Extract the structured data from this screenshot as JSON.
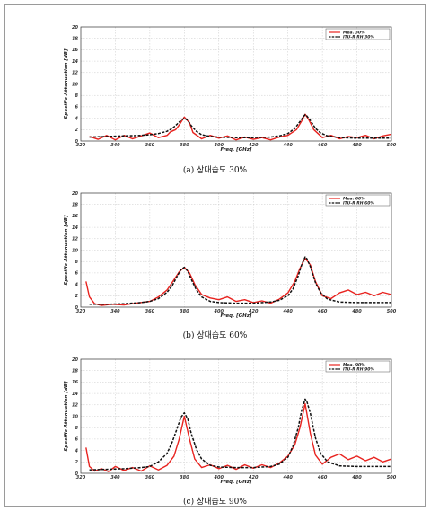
{
  "chart_data": [
    {
      "type": "line",
      "caption": "(a) 상대습도 30%",
      "xlabel": "Freq. [GHz]",
      "ylabel": "Specific Attenuation [dB]",
      "xlim": [
        320,
        500
      ],
      "ylim": [
        0,
        20
      ],
      "xticks": [
        320,
        340,
        360,
        380,
        400,
        420,
        440,
        460,
        480,
        500
      ],
      "yticks": [
        0,
        2,
        4,
        6,
        8,
        10,
        12,
        14,
        16,
        18,
        20
      ],
      "grid": true,
      "legend_position": "top-right",
      "series": [
        {
          "name": "Mea. 30%",
          "color": "#e8231f",
          "dash": "solid",
          "x": [
            325,
            330,
            335,
            340,
            345,
            350,
            355,
            360,
            365,
            370,
            372,
            375,
            377,
            380,
            383,
            385,
            390,
            395,
            400,
            405,
            410,
            415,
            420,
            425,
            430,
            435,
            440,
            445,
            448,
            450,
            452,
            455,
            460,
            465,
            470,
            475,
            480,
            485,
            490,
            495,
            500
          ],
          "y": [
            0.8,
            0.3,
            1.0,
            0.2,
            1.0,
            0.4,
            0.9,
            1.4,
            0.6,
            1.0,
            1.6,
            2.0,
            2.8,
            4.2,
            3.2,
            1.5,
            0.4,
            1.0,
            0.5,
            0.9,
            0.2,
            0.7,
            0.3,
            0.6,
            0.2,
            0.7,
            1.0,
            2.0,
            3.5,
            4.7,
            3.8,
            2.0,
            0.6,
            1.0,
            0.4,
            0.8,
            0.6,
            1.0,
            0.4,
            0.9,
            1.2
          ]
        },
        {
          "name": "ITU-R RH 30%",
          "color": "#111111",
          "dash": "dashed",
          "x": [
            325,
            335,
            345,
            355,
            360,
            365,
            370,
            373,
            376,
            378,
            380,
            382,
            384,
            387,
            390,
            395,
            400,
            410,
            420,
            430,
            435,
            440,
            444,
            447,
            449,
            450,
            451,
            453,
            456,
            459,
            463,
            470,
            480,
            490,
            500
          ],
          "y": [
            0.7,
            0.8,
            0.9,
            1.0,
            1.1,
            1.3,
            1.7,
            2.2,
            3.0,
            3.6,
            4.0,
            3.6,
            2.7,
            1.7,
            1.1,
            0.8,
            0.7,
            0.6,
            0.6,
            0.7,
            0.9,
            1.3,
            2.2,
            3.4,
            4.3,
            4.6,
            4.4,
            3.6,
            2.2,
            1.4,
            0.9,
            0.6,
            0.5,
            0.5,
            0.5
          ]
        }
      ]
    },
    {
      "type": "line",
      "caption": "(b) 상대습도 60%",
      "xlabel": "Freq. [GHz]",
      "ylabel": "Specific Attenuation [dB]",
      "xlim": [
        320,
        500
      ],
      "ylim": [
        0,
        20
      ],
      "xticks": [
        320,
        340,
        360,
        380,
        400,
        420,
        440,
        460,
        480,
        500
      ],
      "yticks": [
        0,
        2,
        4,
        6,
        8,
        10,
        12,
        14,
        16,
        18,
        20
      ],
      "grid": true,
      "legend_position": "top-right",
      "series": [
        {
          "name": "Mea. 60%",
          "color": "#e8231f",
          "dash": "solid",
          "x": [
            323,
            325,
            328,
            332,
            338,
            345,
            352,
            360,
            365,
            370,
            374,
            377,
            380,
            383,
            386,
            390,
            395,
            400,
            405,
            410,
            415,
            420,
            425,
            430,
            435,
            440,
            444,
            447,
            450,
            453,
            456,
            460,
            465,
            470,
            475,
            480,
            485,
            490,
            495,
            500
          ],
          "y": [
            4.5,
            1.8,
            0.6,
            0.3,
            0.5,
            0.4,
            0.7,
            1.0,
            1.8,
            3.0,
            4.8,
            6.2,
            7.0,
            6.0,
            4.0,
            2.2,
            1.6,
            1.3,
            1.8,
            1.0,
            1.3,
            0.8,
            1.1,
            0.7,
            1.4,
            2.5,
            4.5,
            6.8,
            8.6,
            7.4,
            4.5,
            2.0,
            1.5,
            2.5,
            3.0,
            2.2,
            2.6,
            2.0,
            2.6,
            2.2
          ]
        },
        {
          "name": "ITU-R RH 60%",
          "color": "#111111",
          "dash": "dashed",
          "x": [
            325,
            335,
            345,
            355,
            360,
            365,
            370,
            373,
            376,
            378,
            380,
            382,
            384,
            387,
            390,
            395,
            400,
            410,
            420,
            430,
            435,
            440,
            443,
            446,
            448,
            450,
            451,
            453,
            456,
            459,
            463,
            470,
            480,
            490,
            500
          ],
          "y": [
            0.5,
            0.5,
            0.6,
            0.8,
            1.0,
            1.5,
            2.6,
            3.8,
            5.5,
            6.6,
            7.0,
            6.3,
            4.9,
            3.0,
            1.8,
            1.0,
            0.8,
            0.7,
            0.7,
            0.9,
            1.2,
            2.0,
            3.2,
            5.5,
            7.4,
            8.8,
            8.5,
            7.1,
            4.3,
            2.5,
            1.4,
            0.9,
            0.8,
            0.8,
            0.8
          ]
        }
      ]
    },
    {
      "type": "line",
      "caption": "(c) 상대습도 90%",
      "xlabel": "Freq. [GHz]",
      "ylabel": "Specific Attenuation [dB]",
      "xlim": [
        320,
        500
      ],
      "ylim": [
        0,
        20
      ],
      "xticks": [
        320,
        340,
        360,
        380,
        400,
        420,
        440,
        460,
        480,
        500
      ],
      "yticks": [
        0,
        2,
        4,
        6,
        8,
        10,
        12,
        14,
        16,
        18,
        20
      ],
      "grid": true,
      "legend_position": "top-right",
      "series": [
        {
          "name": "Mea. 90%",
          "color": "#e8231f",
          "dash": "solid",
          "x": [
            323,
            325,
            328,
            332,
            336,
            340,
            345,
            350,
            355,
            360,
            365,
            370,
            374,
            377,
            380,
            383,
            386,
            390,
            395,
            400,
            405,
            410,
            415,
            420,
            425,
            430,
            435,
            440,
            444,
            447,
            450,
            453,
            456,
            460,
            465,
            470,
            475,
            480,
            485,
            490,
            495,
            500
          ],
          "y": [
            4.5,
            1.2,
            0.4,
            0.8,
            0.3,
            1.2,
            0.5,
            1.0,
            0.4,
            1.3,
            0.6,
            1.4,
            3.0,
            6.0,
            10.0,
            6.0,
            2.5,
            1.0,
            1.5,
            0.8,
            1.4,
            0.7,
            1.5,
            0.9,
            1.5,
            1.0,
            1.8,
            3.0,
            5.0,
            8.0,
            12.2,
            7.0,
            3.2,
            1.6,
            2.8,
            3.4,
            2.4,
            3.0,
            2.2,
            2.8,
            2.0,
            2.5
          ]
        },
        {
          "name": "ITU-R RH 90%",
          "color": "#111111",
          "dash": "dashed",
          "x": [
            325,
            335,
            345,
            355,
            360,
            365,
            370,
            373,
            376,
            378,
            380,
            382,
            384,
            387,
            390,
            395,
            400,
            410,
            420,
            430,
            435,
            440,
            443,
            446,
            448,
            450,
            451,
            453,
            456,
            459,
            463,
            470,
            480,
            490,
            500
          ],
          "y": [
            0.6,
            0.7,
            0.8,
            1.0,
            1.2,
            2.0,
            3.5,
            5.5,
            8.0,
            9.8,
            10.6,
            9.5,
            7.0,
            4.2,
            2.5,
            1.4,
            1.1,
            1.0,
            1.0,
            1.2,
            1.6,
            2.8,
            4.8,
            8.0,
            11.0,
            13.0,
            12.6,
            10.5,
            6.2,
            3.5,
            2.0,
            1.3,
            1.2,
            1.2,
            1.2
          ]
        }
      ]
    }
  ]
}
